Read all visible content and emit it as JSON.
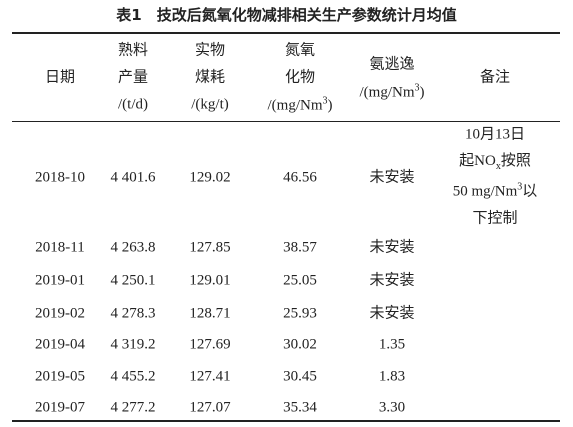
{
  "table": {
    "title": "表1　技改后氮氧化物减排相关生产参数统计月均值",
    "columns": [
      {
        "lines": [
          [
            "日期"
          ]
        ]
      },
      {
        "lines": [
          [
            "熟料"
          ],
          [
            "产量"
          ],
          [
            "/(t/d)"
          ]
        ]
      },
      {
        "lines": [
          [
            "实物"
          ],
          [
            "煤耗"
          ],
          [
            "/(kg/t)"
          ]
        ]
      },
      {
        "lines": [
          [
            "氮氧"
          ],
          [
            "化物"
          ],
          [
            "/(mg/Nm",
            {
              "sup": "3"
            },
            ")"
          ]
        ]
      },
      {
        "lines": [
          [
            "氨逃逸"
          ],
          [
            "/(mg/Nm",
            {
              "sup": "3"
            },
            ")"
          ]
        ]
      },
      {
        "lines": [
          [
            "备注"
          ]
        ]
      }
    ],
    "rows": [
      [
        "2018-10",
        "4 401.6",
        "129.02",
        "46.56",
        "未安装"
      ],
      [
        "2018-11",
        "4 263.8",
        "127.85",
        "38.57",
        "未安装"
      ],
      [
        "2019-01",
        "4 250.1",
        "129.01",
        "25.05",
        "未安装"
      ],
      [
        "2019-02",
        "4 278.3",
        "128.71",
        "25.93",
        "未安装"
      ],
      [
        "2019-04",
        "4 319.2",
        "127.69",
        "30.02",
        "1.35"
      ],
      [
        "2019-05",
        "4 455.2",
        "127.41",
        "30.45",
        "1.83"
      ],
      [
        "2019-07",
        "4 277.2",
        "127.07",
        "35.34",
        "3.30"
      ]
    ],
    "note": {
      "lines": [
        [
          "10月13日"
        ],
        [
          "起NO",
          {
            "sub": "x"
          },
          "按照"
        ],
        [
          "50 mg/Nm",
          {
            "sup": "3"
          },
          "以"
        ],
        [
          "下控制"
        ]
      ]
    }
  }
}
